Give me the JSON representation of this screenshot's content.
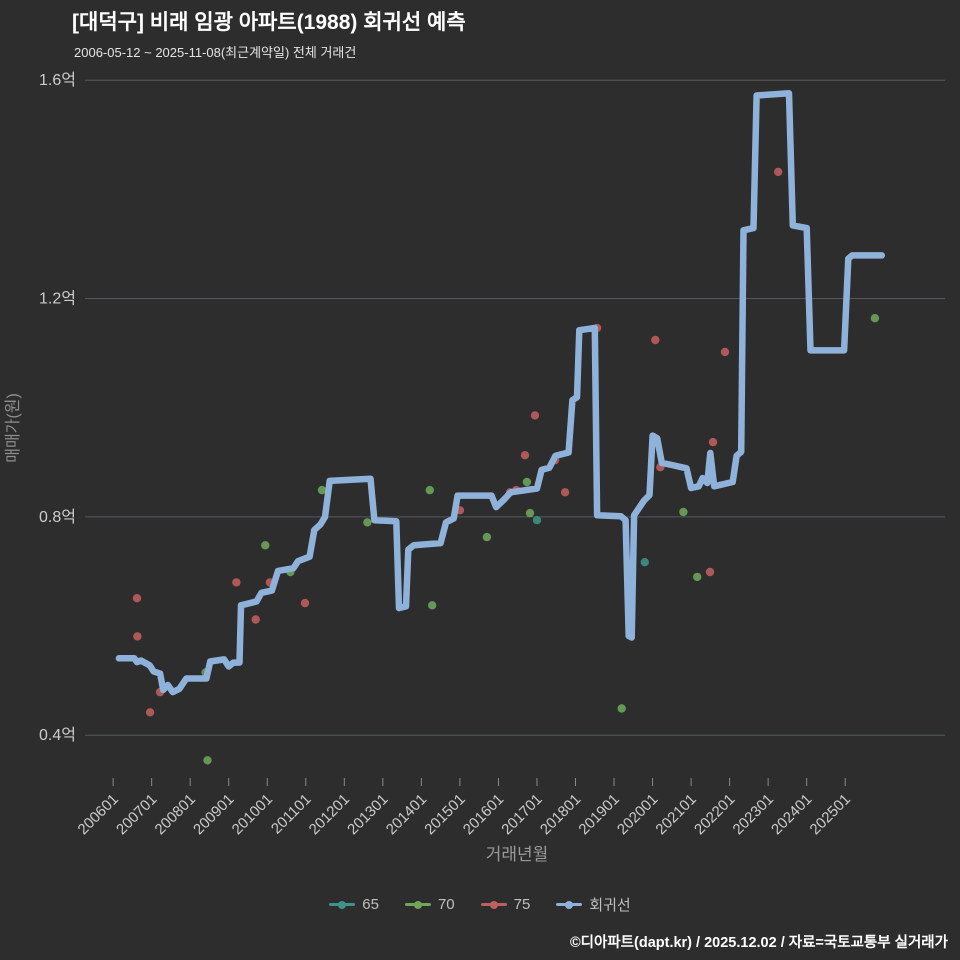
{
  "header": {
    "title": "[대덕구] 비래 임광 아파트(1988) 회귀선 예측",
    "subtitle": "2006-05-12 ~ 2025-11-08(최근계약일) 전체 거래건"
  },
  "footer": {
    "credit": "©디아파트(dapt.kr) / 2025.12.02 / 자료=국토교통부 실거래가"
  },
  "chart_data": {
    "type": "line",
    "title": "[대덕구] 비래 임광 아파트(1988) 회귀선 예측",
    "subtitle": "2006-05-12 ~ 2025-11-08(최근계약일) 전체 거래건",
    "xlabel": "거래년월",
    "ylabel": "매매가(원)",
    "xlim": [
      2005.27,
      2027.59
    ],
    "ylim": [
      0.318,
      1.637
    ],
    "grid": true,
    "legend_position": "bottom",
    "background_color": "#2d2d2d",
    "grid_color": "#56585b",
    "y_ticks": [
      {
        "label": "0.4억",
        "value": 0.4
      },
      {
        "label": "0.8억",
        "value": 0.8
      },
      {
        "label": "1.2억",
        "value": 1.2
      },
      {
        "label": "1.6억",
        "value": 1.6
      }
    ],
    "x_ticks": [
      {
        "label": "200601",
        "year": 2006
      },
      {
        "label": "200701",
        "year": 2007
      },
      {
        "label": "200801",
        "year": 2008
      },
      {
        "label": "200901",
        "year": 2009
      },
      {
        "label": "201001",
        "year": 2010
      },
      {
        "label": "201101",
        "year": 2011
      },
      {
        "label": "201201",
        "year": 2012
      },
      {
        "label": "201301",
        "year": 2013
      },
      {
        "label": "201401",
        "year": 2014
      },
      {
        "label": "201501",
        "year": 2015
      },
      {
        "label": "201601",
        "year": 2016
      },
      {
        "label": "201701",
        "year": 2017
      },
      {
        "label": "201801",
        "year": 2018
      },
      {
        "label": "201901",
        "year": 2019
      },
      {
        "label": "202001",
        "year": 2020
      },
      {
        "label": "202101",
        "year": 2021
      },
      {
        "label": "202201",
        "year": 2022
      },
      {
        "label": "202301",
        "year": 2023
      },
      {
        "label": "202401",
        "year": 2024
      },
      {
        "label": "202501",
        "year": 2025
      }
    ],
    "legend": [
      {
        "label": "65",
        "color": "#3d9488"
      },
      {
        "label": "70",
        "color": "#6da75a"
      },
      {
        "label": "75",
        "color": "#c05f5f"
      },
      {
        "label": "회귀선",
        "color": "#8fb2da"
      }
    ],
    "series": [
      {
        "name": "65",
        "type": "scatter",
        "color": "#3d9488",
        "points": [
          [
            2017.0,
            0.794
          ],
          [
            2019.8,
            0.717
          ]
        ]
      },
      {
        "name": "70",
        "type": "scatter",
        "color": "#6da75a",
        "points": [
          [
            2008.4,
            0.515
          ],
          [
            2008.45,
            0.354
          ],
          [
            2009.95,
            0.748
          ],
          [
            2010.6,
            0.699
          ],
          [
            2011.42,
            0.849
          ],
          [
            2012.6,
            0.79
          ],
          [
            2014.22,
            0.849
          ],
          [
            2014.28,
            0.638
          ],
          [
            2015.7,
            0.763
          ],
          [
            2016.74,
            0.864
          ],
          [
            2016.82,
            0.807
          ],
          [
            2019.2,
            0.449
          ],
          [
            2020.8,
            0.809
          ],
          [
            2021.16,
            0.69
          ],
          [
            2025.77,
            1.164
          ]
        ]
      },
      {
        "name": "75",
        "type": "scatter",
        "color": "#c05f5f",
        "points": [
          [
            2006.62,
            0.651
          ],
          [
            2006.63,
            0.581
          ],
          [
            2006.96,
            0.442
          ],
          [
            2007.22,
            0.479
          ],
          [
            2009.2,
            0.68
          ],
          [
            2009.7,
            0.612
          ],
          [
            2010.07,
            0.68
          ],
          [
            2010.98,
            0.642
          ],
          [
            2015.0,
            0.812
          ],
          [
            2016.3,
            0.845
          ],
          [
            2016.46,
            0.849
          ],
          [
            2016.69,
            0.913
          ],
          [
            2016.95,
            0.986
          ],
          [
            2017.47,
            0.904
          ],
          [
            2017.73,
            0.845
          ],
          [
            2018.56,
            1.146
          ],
          [
            2020.07,
            1.124
          ],
          [
            2020.2,
            0.891
          ],
          [
            2021.49,
            0.699
          ],
          [
            2021.57,
            0.937
          ],
          [
            2021.88,
            1.102
          ],
          [
            2023.26,
            1.432
          ]
        ]
      },
      {
        "name": "회귀선",
        "type": "line",
        "color": "#8fb2da",
        "width": 6.5,
        "points": [
          [
            2006.15,
            0.541
          ],
          [
            2006.55,
            0.541
          ],
          [
            2006.62,
            0.534
          ],
          [
            2006.72,
            0.537
          ],
          [
            2006.95,
            0.528
          ],
          [
            2007.05,
            0.517
          ],
          [
            2007.22,
            0.513
          ],
          [
            2007.3,
            0.483
          ],
          [
            2007.42,
            0.492
          ],
          [
            2007.55,
            0.479
          ],
          [
            2007.72,
            0.485
          ],
          [
            2007.9,
            0.504
          ],
          [
            2008.42,
            0.504
          ],
          [
            2008.52,
            0.535
          ],
          [
            2008.88,
            0.539
          ],
          [
            2009.0,
            0.526
          ],
          [
            2009.12,
            0.533
          ],
          [
            2009.28,
            0.533
          ],
          [
            2009.32,
            0.638
          ],
          [
            2009.72,
            0.645
          ],
          [
            2009.85,
            0.661
          ],
          [
            2010.12,
            0.665
          ],
          [
            2010.28,
            0.701
          ],
          [
            2010.68,
            0.706
          ],
          [
            2010.8,
            0.719
          ],
          [
            2011.1,
            0.727
          ],
          [
            2011.22,
            0.776
          ],
          [
            2011.38,
            0.786
          ],
          [
            2011.5,
            0.8
          ],
          [
            2011.62,
            0.866
          ],
          [
            2012.68,
            0.87
          ],
          [
            2012.78,
            0.794
          ],
          [
            2013.35,
            0.792
          ],
          [
            2013.42,
            0.633
          ],
          [
            2013.6,
            0.636
          ],
          [
            2013.66,
            0.74
          ],
          [
            2013.8,
            0.748
          ],
          [
            2014.5,
            0.752
          ],
          [
            2014.64,
            0.79
          ],
          [
            2014.84,
            0.797
          ],
          [
            2014.94,
            0.839
          ],
          [
            2015.82,
            0.839
          ],
          [
            2015.94,
            0.818
          ],
          [
            2016.12,
            0.83
          ],
          [
            2016.32,
            0.845
          ],
          [
            2017.0,
            0.852
          ],
          [
            2017.12,
            0.886
          ],
          [
            2017.32,
            0.89
          ],
          [
            2017.48,
            0.912
          ],
          [
            2017.82,
            0.918
          ],
          [
            2017.92,
            1.014
          ],
          [
            2018.04,
            1.019
          ],
          [
            2018.1,
            1.142
          ],
          [
            2018.5,
            1.146
          ],
          [
            2018.56,
            0.803
          ],
          [
            2019.18,
            0.801
          ],
          [
            2019.3,
            0.794
          ],
          [
            2019.38,
            0.582
          ],
          [
            2019.46,
            0.579
          ],
          [
            2019.52,
            0.803
          ],
          [
            2019.78,
            0.83
          ],
          [
            2019.92,
            0.84
          ],
          [
            2020.0,
            0.949
          ],
          [
            2020.12,
            0.944
          ],
          [
            2020.24,
            0.899
          ],
          [
            2020.5,
            0.895
          ],
          [
            2020.88,
            0.889
          ],
          [
            2021.0,
            0.853
          ],
          [
            2021.2,
            0.856
          ],
          [
            2021.3,
            0.871
          ],
          [
            2021.42,
            0.862
          ],
          [
            2021.5,
            0.917
          ],
          [
            2021.6,
            0.856
          ],
          [
            2022.08,
            0.864
          ],
          [
            2022.18,
            0.912
          ],
          [
            2022.3,
            0.919
          ],
          [
            2022.36,
            1.325
          ],
          [
            2022.62,
            1.329
          ],
          [
            2022.7,
            1.572
          ],
          [
            2023.54,
            1.576
          ],
          [
            2023.64,
            1.334
          ],
          [
            2024.0,
            1.329
          ],
          [
            2024.1,
            1.105
          ],
          [
            2024.97,
            1.105
          ],
          [
            2025.08,
            1.273
          ],
          [
            2025.18,
            1.279
          ],
          [
            2025.95,
            1.279
          ]
        ]
      }
    ]
  }
}
